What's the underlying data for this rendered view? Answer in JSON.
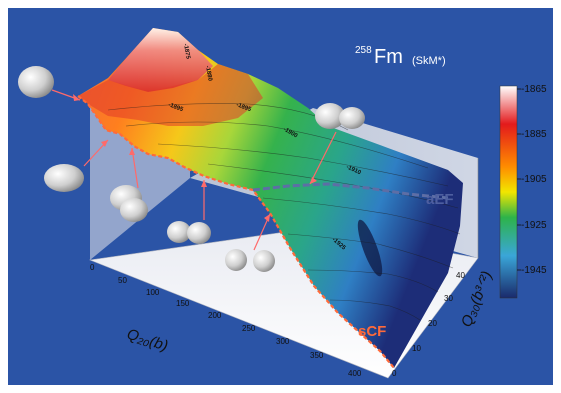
{
  "figure": {
    "title_nucleus": "Fm",
    "title_mass": "258",
    "title_model": "(SkM*)"
  },
  "colorbar": {
    "ticks": [
      "-1865",
      "-1885",
      "-1905",
      "-1925",
      "-1945"
    ],
    "gradient": [
      "#ffffff",
      "#e31a1c",
      "#ff8c00",
      "#f2e600",
      "#2db34a",
      "#3aa6d8",
      "#1a2a6b"
    ]
  },
  "axes": {
    "q20_label": "Q₂₀(b)",
    "q30_label": "Q₃₀(b³ᐟ²)",
    "q20_ticks": [
      "0",
      "50",
      "100",
      "150",
      "200",
      "250",
      "300",
      "350",
      "400"
    ],
    "q30_ticks": [
      "0",
      "10",
      "20",
      "30",
      "40"
    ]
  },
  "annotations": {
    "aef": "aEF",
    "scf": "sCF"
  },
  "contour_labels": [
    "-1875",
    "-1880",
    "-1895",
    "-1895",
    "-1900",
    "-1910",
    "-1925"
  ]
}
